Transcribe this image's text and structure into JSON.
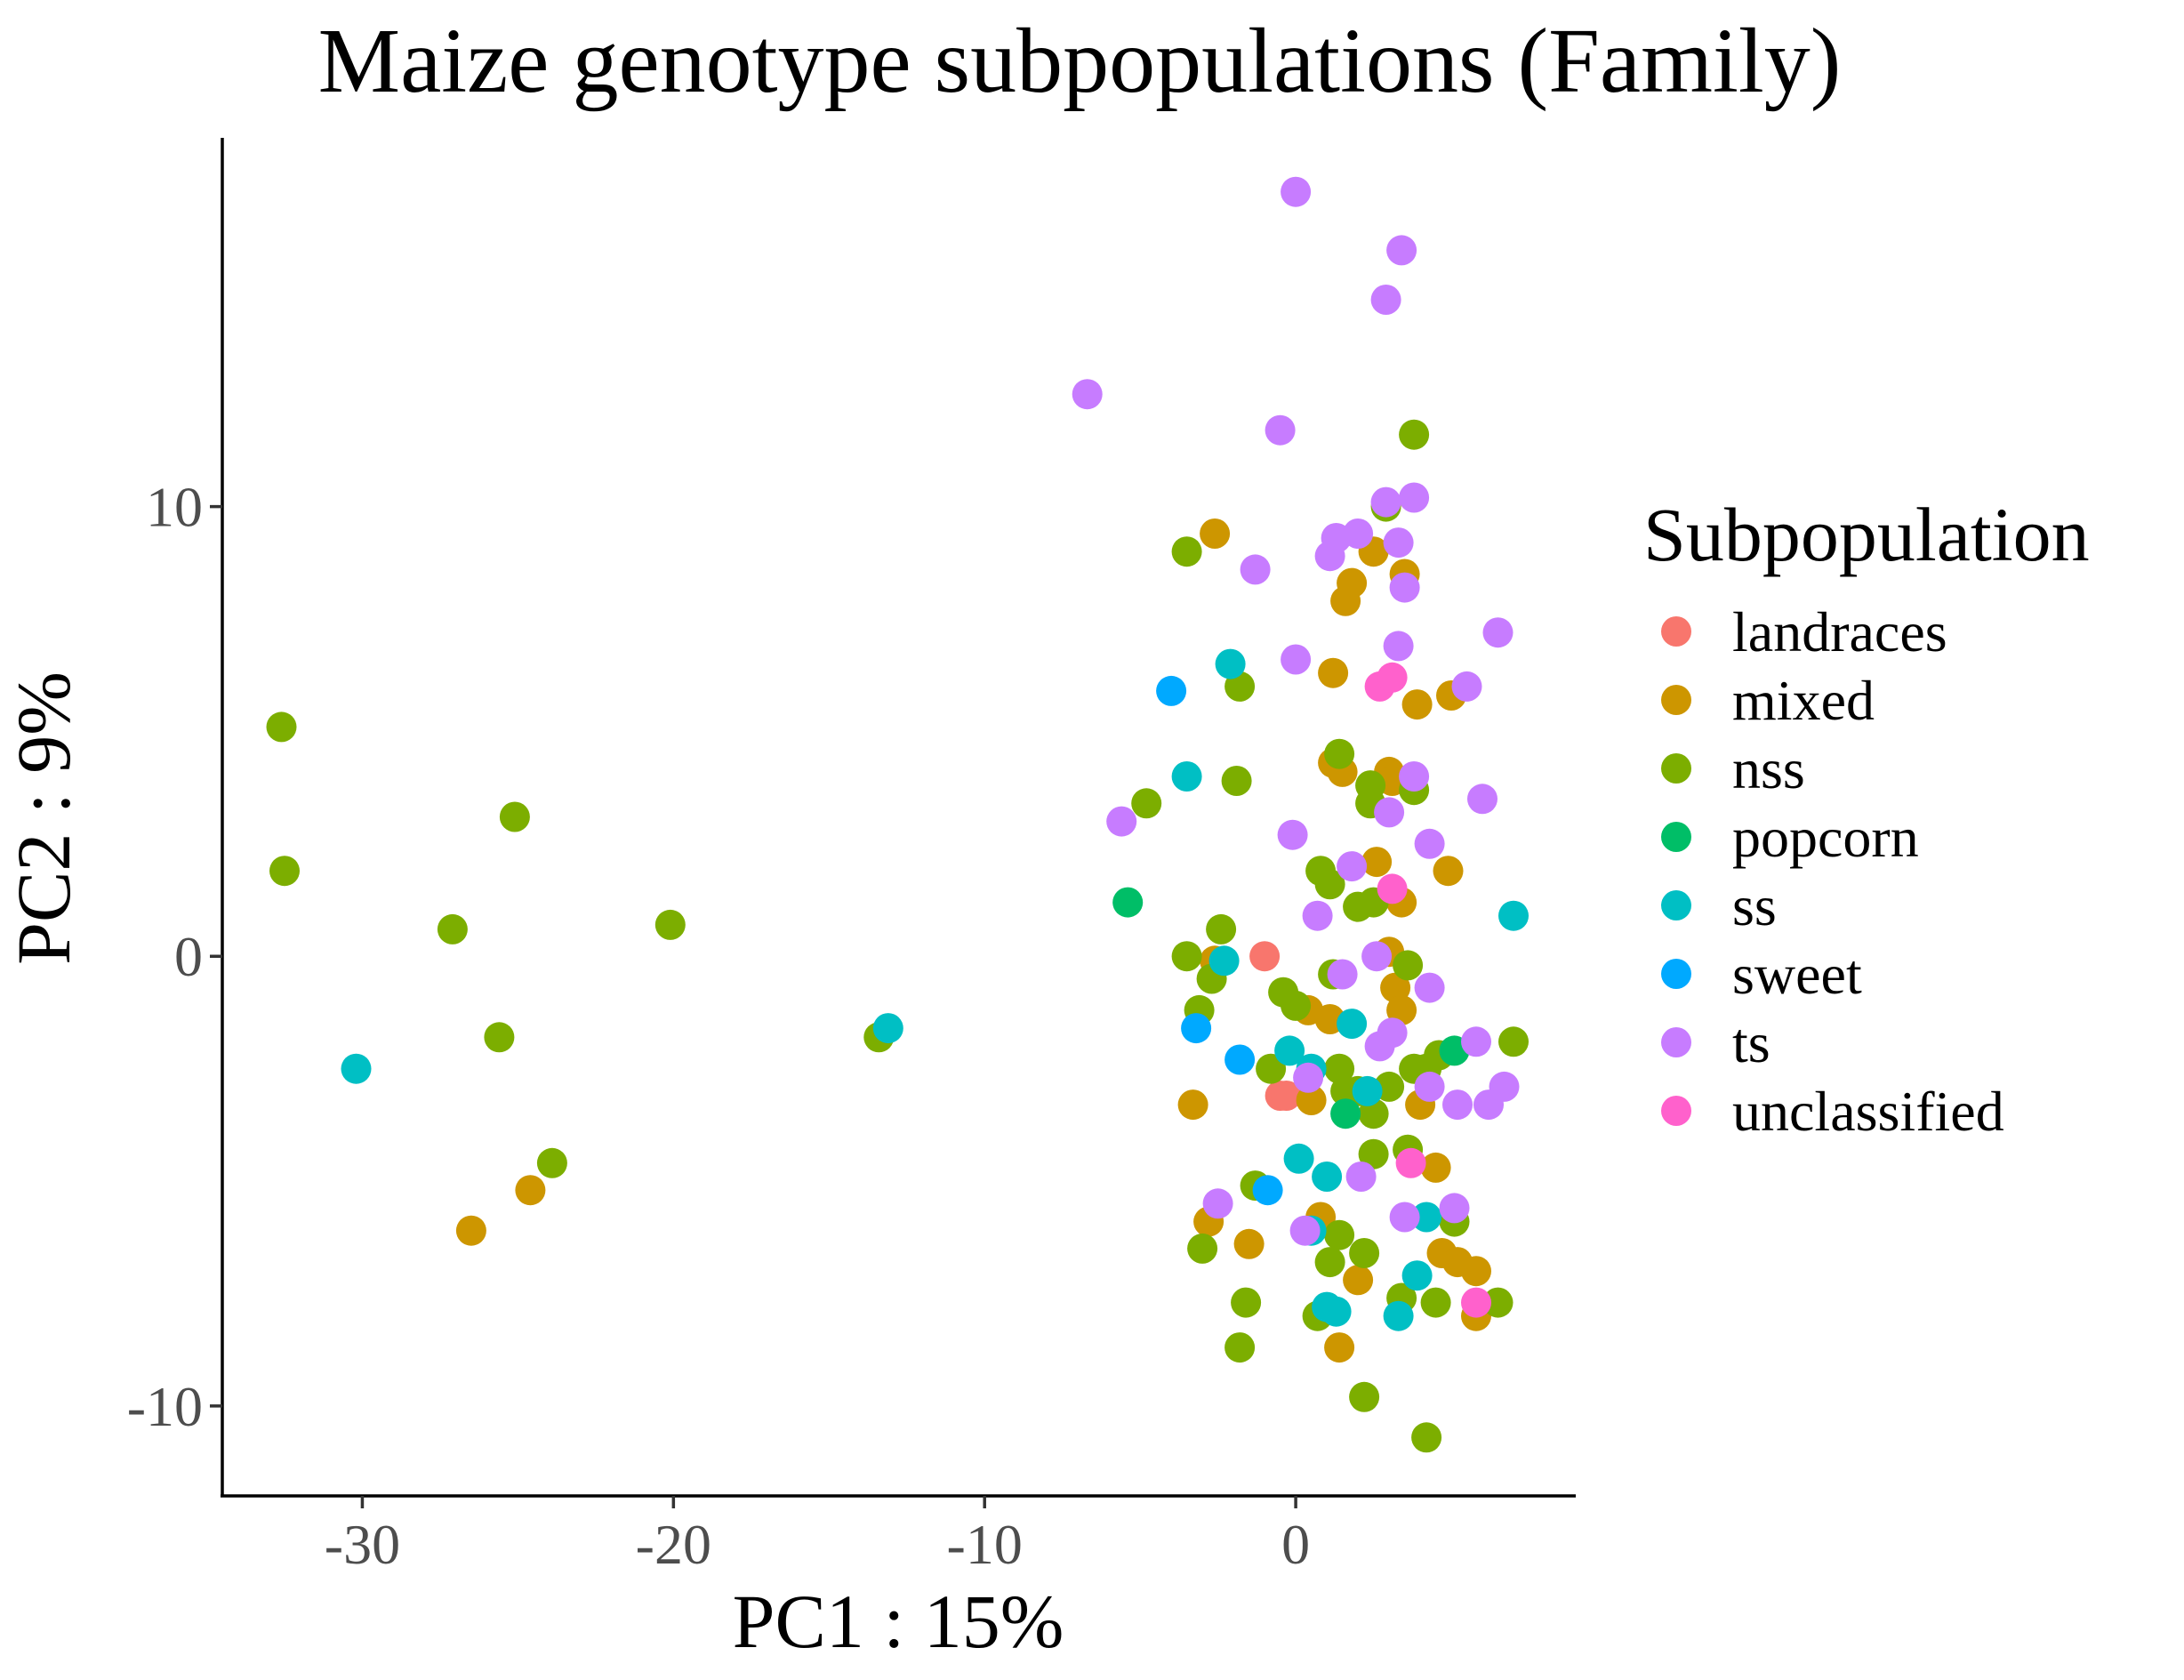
{
  "chart_data": {
    "type": "scatter",
    "title": "Maize genotype subpopulations (Family)",
    "xlabel": "PC1 : 15%",
    "ylabel": "PC2 : 9%",
    "xlim": [
      -34.5,
      9
    ],
    "ylim": [
      -12,
      18.2
    ],
    "xticks": [
      -30,
      -20,
      -10,
      0
    ],
    "xtick_labels": [
      "-30",
      "-20",
      "-10",
      "0"
    ],
    "yticks": [
      -10,
      0,
      10
    ],
    "ytick_labels": [
      "-10",
      "0",
      "10"
    ],
    "grid": false,
    "legend": {
      "title": "Subpopulation",
      "position": "right"
    },
    "series": [
      {
        "name": "landraces",
        "color": "#F8766D",
        "points": [
          [
            -1.0,
            0.0
          ],
          [
            -0.5,
            -3.1
          ],
          [
            -0.3,
            -3.1
          ]
        ]
      },
      {
        "name": "mixed",
        "color": "#CD9600",
        "points": [
          [
            -26.5,
            -6.1
          ],
          [
            -24.6,
            -5.2
          ],
          [
            -2.6,
            9.4
          ],
          [
            -2.8,
            -5.9
          ],
          [
            -3.3,
            -3.3
          ],
          [
            -1.5,
            -6.4
          ],
          [
            -2.6,
            -0.1
          ],
          [
            1.2,
            6.3
          ],
          [
            1.2,
            4.3
          ],
          [
            1.5,
            4.1
          ],
          [
            1.6,
            7.9
          ],
          [
            1.8,
            8.3
          ],
          [
            2.5,
            9.0
          ],
          [
            3.5,
            8.5
          ],
          [
            3.9,
            5.6
          ],
          [
            5.0,
            5.8
          ],
          [
            3.0,
            4.1
          ],
          [
            3.1,
            3.9
          ],
          [
            2.6,
            2.1
          ],
          [
            3.4,
            1.2
          ],
          [
            4.9,
            1.9
          ],
          [
            3.0,
            0.1
          ],
          [
            3.2,
            -0.7
          ],
          [
            3.4,
            -1.2
          ],
          [
            0.4,
            -1.2
          ],
          [
            1.1,
            -1.4
          ],
          [
            0.5,
            -3.2
          ],
          [
            4.0,
            -3.3
          ],
          [
            4.5,
            -4.7
          ],
          [
            0.8,
            -5.8
          ],
          [
            2.0,
            -7.2
          ],
          [
            1.4,
            -8.7
          ],
          [
            4.7,
            -6.6
          ],
          [
            5.2,
            -6.8
          ],
          [
            5.8,
            -7.0
          ],
          [
            5.8,
            -8.0
          ]
        ]
      },
      {
        "name": "nss",
        "color": "#7CAE00",
        "points": [
          [
            -32.6,
            5.1
          ],
          [
            -32.5,
            1.9
          ],
          [
            -25.1,
            3.1
          ],
          [
            -27.1,
            0.6
          ],
          [
            -20.1,
            0.7
          ],
          [
            -25.6,
            -1.8
          ],
          [
            -23.9,
            -4.6
          ],
          [
            -13.4,
            -1.8
          ],
          [
            -3.5,
            9.0
          ],
          [
            -1.8,
            6.0
          ],
          [
            -1.9,
            3.9
          ],
          [
            -4.8,
            3.4
          ],
          [
            -3.5,
            0.0
          ],
          [
            -2.4,
            0.6
          ],
          [
            -2.7,
            -0.5
          ],
          [
            -3.1,
            -1.2
          ],
          [
            -0.4,
            -0.8
          ],
          [
            0.0,
            -1.1
          ],
          [
            -0.8,
            -2.5
          ],
          [
            -3.0,
            -6.5
          ],
          [
            -1.6,
            -7.7
          ],
          [
            -1.8,
            -8.7
          ],
          [
            -1.3,
            -5.1
          ],
          [
            0.7,
            -8.0
          ],
          [
            1.1,
            -6.8
          ],
          [
            1.4,
            -6.2
          ],
          [
            2.2,
            -9.8
          ],
          [
            2.2,
            -6.6
          ],
          [
            2.5,
            -4.4
          ],
          [
            2.5,
            -3.5
          ],
          [
            2.0,
            -3.0
          ],
          [
            1.4,
            -2.5
          ],
          [
            1.6,
            -3.0
          ],
          [
            3.0,
            -2.9
          ],
          [
            3.8,
            -2.5
          ],
          [
            4.2,
            -2.5
          ],
          [
            3.6,
            -4.3
          ],
          [
            4.2,
            -10.7
          ],
          [
            4.5,
            -7.7
          ],
          [
            3.4,
            -7.6
          ],
          [
            5.1,
            -5.9
          ],
          [
            6.5,
            -7.7
          ],
          [
            7.0,
            -1.9
          ],
          [
            4.6,
            -2.2
          ],
          [
            3.6,
            -0.2
          ],
          [
            1.2,
            -0.4
          ],
          [
            2.0,
            1.1
          ],
          [
            2.5,
            1.2
          ],
          [
            0.8,
            1.9
          ],
          [
            1.1,
            1.6
          ],
          [
            2.4,
            3.4
          ],
          [
            2.4,
            3.8
          ],
          [
            3.8,
            3.7
          ],
          [
            1.4,
            4.5
          ],
          [
            2.9,
            10.0
          ],
          [
            3.8,
            11.6
          ]
        ]
      },
      {
        "name": "popcorn",
        "color": "#00BE67",
        "points": [
          [
            -5.4,
            1.2
          ],
          [
            1.6,
            -3.5
          ],
          [
            5.1,
            -2.1
          ]
        ]
      },
      {
        "name": "ss",
        "color": "#00BFC4",
        "points": [
          [
            -30.2,
            -2.5
          ],
          [
            -13.1,
            -1.6
          ],
          [
            -2.1,
            6.5
          ],
          [
            -3.5,
            4.0
          ],
          [
            -2.3,
            -0.1
          ],
          [
            -0.2,
            -2.1
          ],
          [
            0.5,
            -2.5
          ],
          [
            1.8,
            -1.5
          ],
          [
            2.3,
            -3.0
          ],
          [
            1.0,
            -4.9
          ],
          [
            0.1,
            -4.5
          ],
          [
            0.5,
            -6.1
          ],
          [
            1.0,
            -7.8
          ],
          [
            1.3,
            -7.9
          ],
          [
            3.3,
            -8.0
          ],
          [
            3.9,
            -7.1
          ],
          [
            4.2,
            -5.8
          ],
          [
            7.0,
            0.9
          ]
        ]
      },
      {
        "name": "sweet",
        "color": "#00A9FF",
        "points": [
          [
            -4.0,
            5.9
          ],
          [
            -3.2,
            -1.6
          ],
          [
            -1.8,
            -2.3
          ],
          [
            -0.9,
            -5.2
          ]
        ]
      },
      {
        "name": "ts",
        "color": "#C77CFF",
        "points": [
          [
            0.0,
            17.0
          ],
          [
            3.4,
            15.7
          ],
          [
            2.9,
            14.6
          ],
          [
            -6.7,
            12.5
          ],
          [
            -0.5,
            11.7
          ],
          [
            3.8,
            10.2
          ],
          [
            2.9,
            10.1
          ],
          [
            2.0,
            9.4
          ],
          [
            1.3,
            9.3
          ],
          [
            1.1,
            8.9
          ],
          [
            3.3,
            9.2
          ],
          [
            -1.3,
            8.6
          ],
          [
            3.5,
            8.2
          ],
          [
            6.5,
            7.2
          ],
          [
            3.3,
            6.9
          ],
          [
            0.0,
            6.6
          ],
          [
            5.5,
            6.0
          ],
          [
            6.0,
            3.5
          ],
          [
            3.8,
            4.0
          ],
          [
            3.0,
            3.2
          ],
          [
            -5.6,
            3.0
          ],
          [
            -0.1,
            2.7
          ],
          [
            4.3,
            2.5
          ],
          [
            1.8,
            2.0
          ],
          [
            0.7,
            0.9
          ],
          [
            2.6,
            0.0
          ],
          [
            1.5,
            -0.4
          ],
          [
            4.3,
            -0.7
          ],
          [
            3.1,
            -1.7
          ],
          [
            2.7,
            -2.0
          ],
          [
            5.8,
            -1.9
          ],
          [
            0.4,
            -2.7
          ],
          [
            4.3,
            -2.9
          ],
          [
            5.2,
            -3.3
          ],
          [
            6.2,
            -3.3
          ],
          [
            6.7,
            -2.9
          ],
          [
            2.1,
            -4.9
          ],
          [
            3.5,
            -5.8
          ],
          [
            5.1,
            -5.6
          ],
          [
            -2.5,
            -5.5
          ],
          [
            0.3,
            -6.1
          ]
        ]
      },
      {
        "name": "unclassified",
        "color": "#FF61CC",
        "points": [
          [
            2.7,
            6.0
          ],
          [
            3.1,
            6.2
          ],
          [
            3.1,
            1.5
          ],
          [
            3.7,
            -4.6
          ],
          [
            5.8,
            -7.7
          ]
        ]
      }
    ]
  }
}
